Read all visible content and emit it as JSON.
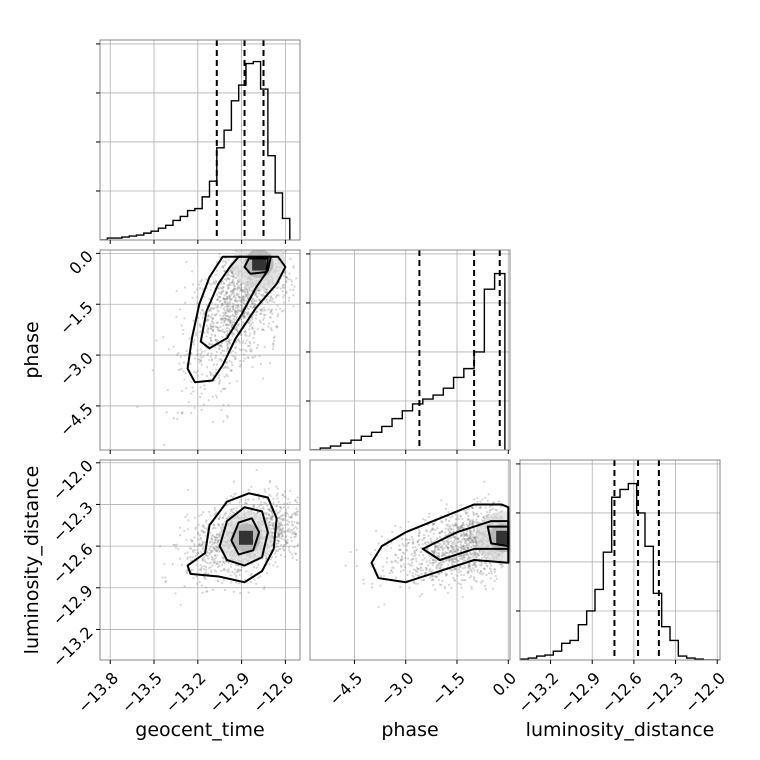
{
  "chart_data": {
    "type": "corner",
    "grid": true,
    "parameters": [
      "geocent_time",
      "phase",
      "luminosity_distance"
    ],
    "quantile_lines": {
      "geocent_time": [
        -13.07,
        -12.88,
        -12.75
      ],
      "phase": [
        -2.6,
        -1.0,
        -0.25
      ],
      "luminosity_distance": [
        -12.74,
        -12.57,
        -12.42
      ]
    },
    "panels": [
      {
        "id": "hist-geocent",
        "kind": "histogram",
        "param": "geocent_time",
        "xlim": [
          -13.87,
          -12.5
        ],
        "ylim": [
          0,
          1.02
        ],
        "x_ticks": [
          -13.8,
          -13.5,
          -13.2,
          -12.9,
          -12.6
        ],
        "y_ticks": [
          0.25,
          0.5,
          0.75,
          1.0
        ],
        "bins_edges": [
          -13.87,
          -13.82,
          -13.77,
          -13.72,
          -13.67,
          -13.62,
          -13.57,
          -13.52,
          -13.47,
          -13.42,
          -13.37,
          -13.32,
          -13.27,
          -13.22,
          -13.17,
          -13.12,
          -13.07,
          -13.02,
          -12.97,
          -12.92,
          -12.87,
          -12.82,
          -12.77,
          -12.72,
          -12.67,
          -12.62,
          -12.57
        ],
        "counts": [
          0,
          0.01,
          0.01,
          0.015,
          0.02,
          0.025,
          0.035,
          0.045,
          0.06,
          0.075,
          0.1,
          0.12,
          0.15,
          0.16,
          0.22,
          0.3,
          0.47,
          0.56,
          0.71,
          0.79,
          0.9,
          0.91,
          0.77,
          0.43,
          0.24,
          0.11
        ]
      },
      {
        "id": "scatter-geocent-phase",
        "kind": "scatter2d",
        "xparam": "geocent_time",
        "yparam": "phase",
        "xlim": [
          -13.87,
          -12.5
        ],
        "ylim": [
          -5.8,
          0.1
        ],
        "y_ticks": [
          0.0,
          -1.5,
          -3.0,
          -4.5
        ],
        "y_tick_labels": [
          "0.0",
          "−1.5",
          "−3.0",
          "−4.5"
        ],
        "ylabel": "phase",
        "mode": {
          "x": -12.78,
          "y": -0.3
        },
        "contours": [
          [
            [
              -13.03,
              -0.1
            ],
            [
              -12.65,
              -0.1
            ],
            [
              -12.6,
              -0.4
            ],
            [
              -12.66,
              -0.9
            ],
            [
              -12.8,
              -1.6
            ],
            [
              -12.94,
              -2.5
            ],
            [
              -13.03,
              -3.3
            ],
            [
              -13.1,
              -3.75
            ],
            [
              -13.22,
              -3.8
            ],
            [
              -13.27,
              -3.4
            ],
            [
              -13.24,
              -2.5
            ],
            [
              -13.19,
              -1.5
            ],
            [
              -13.12,
              -0.7
            ]
          ],
          [
            [
              -12.92,
              -0.1
            ],
            [
              -12.7,
              -0.1
            ],
            [
              -12.72,
              -0.5
            ],
            [
              -12.8,
              -1.0
            ],
            [
              -12.9,
              -1.8
            ],
            [
              -13.0,
              -2.5
            ],
            [
              -13.12,
              -2.8
            ],
            [
              -13.18,
              -2.6
            ],
            [
              -13.14,
              -1.7
            ],
            [
              -13.06,
              -0.9
            ],
            [
              -12.98,
              -0.4
            ]
          ],
          [
            [
              -12.85,
              -0.15
            ],
            [
              -12.72,
              -0.15
            ],
            [
              -12.73,
              -0.55
            ],
            [
              -12.84,
              -0.6
            ],
            [
              -12.88,
              -0.4
            ]
          ]
        ]
      },
      {
        "id": "hist-phase",
        "kind": "histogram",
        "param": "phase",
        "xlim": [
          -5.8,
          0.05
        ],
        "ylim": [
          0,
          1.02
        ],
        "x_ticks": [
          -4.5,
          -3.0,
          -1.5,
          0.0
        ],
        "y_ticks": [
          0.25,
          0.5,
          0.75,
          1.0
        ],
        "bins_edges": [
          -5.8,
          -5.5,
          -5.2,
          -4.9,
          -4.6,
          -4.3,
          -4.0,
          -3.7,
          -3.4,
          -3.1,
          -2.8,
          -2.5,
          -2.2,
          -1.9,
          -1.6,
          -1.3,
          -1.0,
          -0.7,
          -0.4,
          -0.1
        ],
        "counts": [
          0,
          0.01,
          0.02,
          0.035,
          0.05,
          0.07,
          0.09,
          0.12,
          0.16,
          0.2,
          0.235,
          0.26,
          0.28,
          0.315,
          0.37,
          0.415,
          0.5,
          0.82,
          0.9
        ]
      },
      {
        "id": "scatter-geocent-lumdist",
        "kind": "scatter2d",
        "xparam": "geocent_time",
        "yparam": "luminosity_distance",
        "xlim": [
          -13.87,
          -12.5
        ],
        "ylim": [
          -13.42,
          -11.98
        ],
        "x_ticks": [
          -13.8,
          -13.5,
          -13.2,
          -12.9,
          -12.6
        ],
        "x_tick_labels": [
          "−13.8",
          "−13.5",
          "−13.2",
          "−12.9",
          "−12.6"
        ],
        "y_ticks": [
          -12.0,
          -12.3,
          -12.6,
          -12.9,
          -13.2
        ],
        "y_tick_labels": [
          "−12.0",
          "−12.3",
          "−12.6",
          "−12.9",
          "−13.2"
        ],
        "xlabel": "geocent_time",
        "ylabel": "luminosity_distance",
        "mode": {
          "x": -12.87,
          "y": -12.54
        },
        "contours": [
          [
            [
              -13.15,
              -12.65
            ],
            [
              -13.12,
              -12.45
            ],
            [
              -13.0,
              -12.28
            ],
            [
              -12.85,
              -12.22
            ],
            [
              -12.72,
              -12.25
            ],
            [
              -12.66,
              -12.4
            ],
            [
              -12.68,
              -12.62
            ],
            [
              -12.76,
              -12.78
            ],
            [
              -12.88,
              -12.86
            ],
            [
              -13.05,
              -12.82
            ],
            [
              -13.25,
              -12.8
            ],
            [
              -13.27,
              -12.74
            ]
          ],
          [
            [
              -13.05,
              -12.6
            ],
            [
              -13.0,
              -12.42
            ],
            [
              -12.88,
              -12.32
            ],
            [
              -12.76,
              -12.35
            ],
            [
              -12.72,
              -12.5
            ],
            [
              -12.76,
              -12.68
            ],
            [
              -12.88,
              -12.74
            ],
            [
              -13.0,
              -12.7
            ]
          ],
          [
            [
              -12.97,
              -12.56
            ],
            [
              -12.92,
              -12.43
            ],
            [
              -12.83,
              -12.4
            ],
            [
              -12.78,
              -12.5
            ],
            [
              -12.82,
              -12.63
            ],
            [
              -12.92,
              -12.66
            ]
          ]
        ]
      },
      {
        "id": "scatter-phase-lumdist",
        "kind": "scatter2d",
        "xparam": "phase",
        "yparam": "luminosity_distance",
        "xlim": [
          -5.8,
          0.05
        ],
        "ylim": [
          -13.42,
          -11.98
        ],
        "x_ticks": [
          -4.5,
          -3.0,
          -1.5,
          0.0
        ],
        "x_tick_labels": [
          "−4.5",
          "−3.0",
          "−1.5",
          "0.0"
        ],
        "xlabel": "phase",
        "mode": {
          "x": -0.15,
          "y": -12.54
        },
        "contours": [
          [
            [
              -3.7,
              -12.6
            ],
            [
              -3.0,
              -12.5
            ],
            [
              -2.0,
              -12.4
            ],
            [
              -1.0,
              -12.3
            ],
            [
              -0.2,
              -12.3
            ],
            [
              0.0,
              -12.32
            ],
            [
              0.0,
              -12.72
            ],
            [
              -1.0,
              -12.7
            ],
            [
              -2.0,
              -12.78
            ],
            [
              -3.0,
              -12.86
            ],
            [
              -3.8,
              -12.83
            ],
            [
              -4.0,
              -12.72
            ]
          ],
          [
            [
              -2.5,
              -12.62
            ],
            [
              -1.5,
              -12.5
            ],
            [
              -0.5,
              -12.42
            ],
            [
              0.0,
              -12.42
            ],
            [
              0.0,
              -12.62
            ],
            [
              -1.0,
              -12.62
            ],
            [
              -2.0,
              -12.7
            ]
          ],
          [
            [
              -0.6,
              -12.46
            ],
            [
              0.0,
              -12.46
            ],
            [
              0.0,
              -12.6
            ],
            [
              -0.5,
              -12.58
            ]
          ]
        ]
      },
      {
        "id": "hist-lumdist",
        "kind": "histogram",
        "param": "luminosity_distance",
        "xlim": [
          -13.42,
          -11.98
        ],
        "ylim": [
          0,
          1.02
        ],
        "x_ticks": [
          -13.2,
          -12.9,
          -12.6,
          -12.3,
          -12.0
        ],
        "x_tick_labels": [
          "−13.2",
          "−12.9",
          "−12.6",
          "−12.3",
          "−12.0"
        ],
        "y_ticks": [
          0.25,
          0.5,
          0.75,
          1.0
        ],
        "xlabel": "luminosity_distance",
        "bins_edges": [
          -13.42,
          -13.36,
          -13.3,
          -13.24,
          -13.18,
          -13.12,
          -13.06,
          -13.0,
          -12.94,
          -12.88,
          -12.82,
          -12.76,
          -12.7,
          -12.64,
          -12.58,
          -12.52,
          -12.46,
          -12.4,
          -12.34,
          -12.28,
          -12.22,
          -12.16,
          -12.1,
          -12.04,
          -11.98
        ],
        "counts": [
          0.005,
          0.01,
          0.02,
          0.025,
          0.045,
          0.085,
          0.1,
          0.18,
          0.25,
          0.36,
          0.55,
          0.83,
          0.87,
          0.9,
          0.75,
          0.58,
          0.34,
          0.17,
          0.1,
          0.02,
          0.01,
          0.005,
          0,
          0
        ]
      }
    ]
  }
}
